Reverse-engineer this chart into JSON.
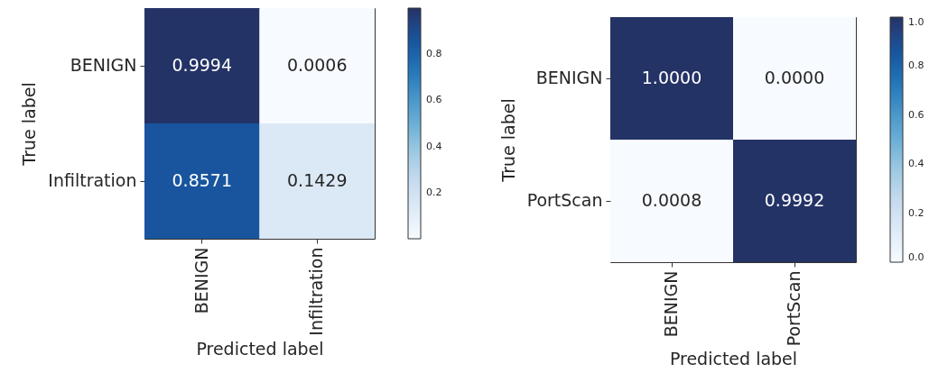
{
  "chart_data": [
    {
      "type": "heatmap",
      "xlabel": "Predicted label",
      "ylabel": "True label",
      "categories": [
        "BENIGN",
        "Infiltration"
      ],
      "y_categories": [
        "BENIGN",
        "Infiltration"
      ],
      "cells": [
        [
          0.9994,
          0.0006
        ],
        [
          0.8571,
          0.1429
        ]
      ],
      "data_labels": true,
      "clim": [
        0.0006,
        0.9994
      ],
      "cticks": [
        0.2,
        0.4,
        0.6,
        0.8
      ]
    },
    {
      "type": "heatmap",
      "xlabel": "Predicted label",
      "ylabel": "True label",
      "categories": [
        "BENIGN",
        "PortScan"
      ],
      "y_categories": [
        "BENIGN",
        "PortScan"
      ],
      "cells": [
        [
          1,
          0
        ],
        [
          0.0008,
          0.9992
        ]
      ],
      "cell_labels": [
        [
          "1.0000",
          "0.0000"
        ],
        [
          "0.0008",
          "0.9992"
        ]
      ],
      "clim": [
        0,
        1
      ],
      "cticks": [
        {
          "value": 0,
          "label": "0.0"
        },
        0.2,
        0.4,
        0.6,
        0.8,
        {
          "value": 1,
          "label": "1.0"
        }
      ]
    }
  ]
}
